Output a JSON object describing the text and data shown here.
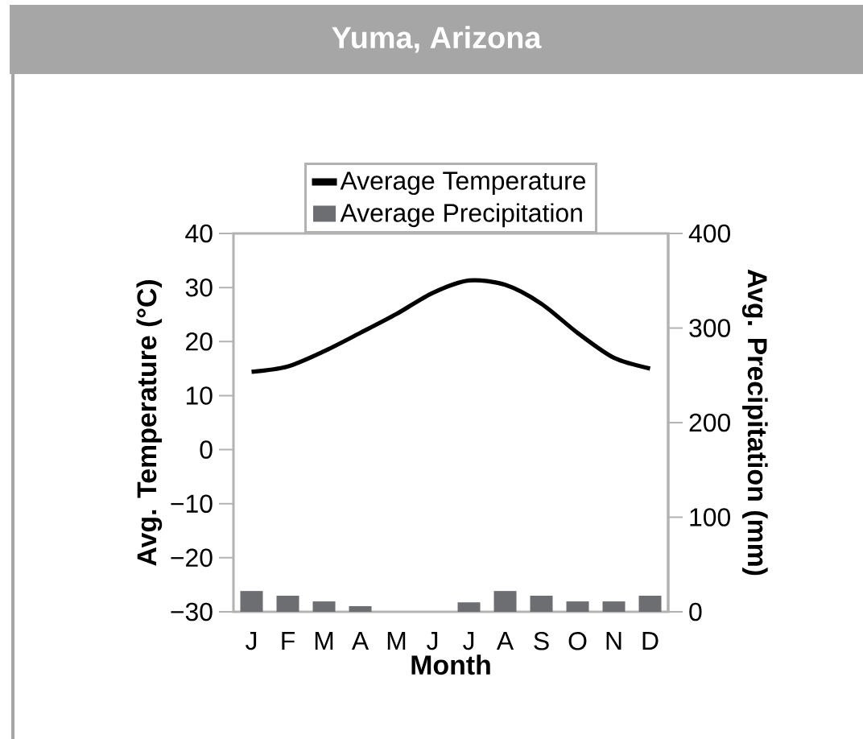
{
  "chart_data": {
    "type": "line",
    "title": "Yuma, Arizona",
    "xlabel": "Month",
    "ylabel": "Avg. Temperature (°C)",
    "y2label": "Avg. Precipitation (mm)",
    "categories": [
      "J",
      "F",
      "M",
      "A",
      "M",
      "J",
      "J",
      "A",
      "S",
      "O",
      "N",
      "D"
    ],
    "series": [
      {
        "name": "Average Temperature",
        "color": "#000000",
        "values": [
          14.4,
          15.4,
          18.2,
          21.6,
          25.1,
          29.0,
          31.3,
          30.5,
          27.0,
          21.6,
          17.0,
          15.0
        ]
      },
      {
        "name": "Average Precipitation",
        "type": "bar",
        "axis": "y2",
        "color": "#6d6e71",
        "values": [
          22,
          17,
          11,
          6,
          0,
          0,
          10,
          22,
          17,
          11,
          11,
          17
        ]
      }
    ],
    "ylim": [
      -30,
      40
    ],
    "yticks": [
      {
        "value": -30,
        "label": "−30"
      },
      {
        "value": -20,
        "label": "−20"
      },
      {
        "value": -10,
        "label": "−10"
      },
      0,
      10,
      20,
      30,
      40
    ],
    "y2lim": [
      0,
      400
    ],
    "y2ticks": [
      0,
      100,
      200,
      300,
      400
    ],
    "legend": "top"
  }
}
